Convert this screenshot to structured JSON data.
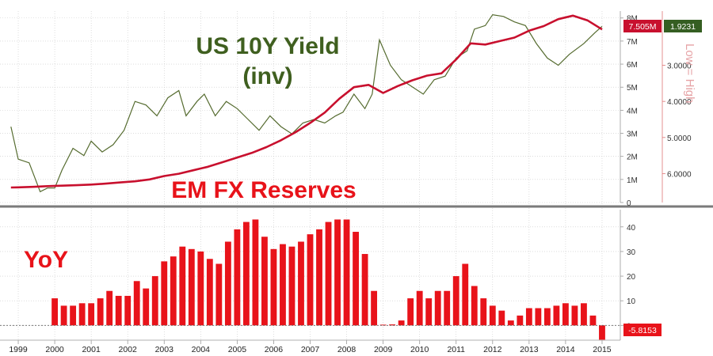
{
  "chart_data": [
    {
      "type": "line",
      "series": [
        {
          "name": "EM FX Reserves",
          "color": "#c8102e",
          "x": [
            1998.8,
            1999.0,
            1999.4,
            1999.8,
            2000.2,
            2000.6,
            2001.0,
            2001.4,
            2001.8,
            2002.2,
            2002.6,
            2003.0,
            2003.4,
            2003.8,
            2004.2,
            2004.6,
            2005.0,
            2005.4,
            2005.8,
            2006.2,
            2006.6,
            2007.0,
            2007.4,
            2007.8,
            2008.2,
            2008.6,
            2009.0,
            2009.4,
            2009.8,
            2010.2,
            2010.6,
            2011.0,
            2011.4,
            2011.8,
            2012.2,
            2012.6,
            2013.0,
            2013.4,
            2013.8,
            2014.2,
            2014.6,
            2015.0
          ],
          "values": [
            0.65,
            0.66,
            0.68,
            0.71,
            0.73,
            0.75,
            0.78,
            0.82,
            0.87,
            0.92,
            1.0,
            1.15,
            1.25,
            1.4,
            1.55,
            1.75,
            1.95,
            2.15,
            2.4,
            2.7,
            3.05,
            3.45,
            3.9,
            4.5,
            5.0,
            5.1,
            4.75,
            5.05,
            5.3,
            5.5,
            5.6,
            6.2,
            6.9,
            6.85,
            7.0,
            7.15,
            7.45,
            7.65,
            7.95,
            8.1,
            7.9,
            7.505
          ]
        },
        {
          "name": "US 10Y Yield (inv)",
          "color": "#556b2f",
          "x": [
            1998.8,
            1999.0,
            1999.3,
            1999.6,
            1999.8,
            2000.0,
            2000.2,
            2000.5,
            2000.8,
            2001.0,
            2001.3,
            2001.6,
            2001.9,
            2002.2,
            2002.5,
            2002.8,
            2003.1,
            2003.4,
            2003.6,
            2003.9,
            2004.1,
            2004.4,
            2004.7,
            2005.0,
            2005.3,
            2005.6,
            2005.9,
            2006.2,
            2006.5,
            2006.8,
            2007.1,
            2007.4,
            2007.7,
            2007.9,
            2008.2,
            2008.5,
            2008.7,
            2008.9,
            2009.2,
            2009.5,
            2009.8,
            2010.1,
            2010.4,
            2010.7,
            2011.0,
            2011.3,
            2011.5,
            2011.8,
            2012.0,
            2012.3,
            2012.6,
            2012.9,
            2013.2,
            2013.5,
            2013.8,
            2014.1,
            2014.5,
            2014.8,
            2015.0
          ],
          "values": [
            4.7,
            5.6,
            5.7,
            6.5,
            6.4,
            6.4,
            5.9,
            5.3,
            5.5,
            5.1,
            5.4,
            5.2,
            4.8,
            4.0,
            4.1,
            4.4,
            3.9,
            3.7,
            4.4,
            4.0,
            3.8,
            4.4,
            4.0,
            4.2,
            4.5,
            4.8,
            4.4,
            4.7,
            4.9,
            4.6,
            4.5,
            4.6,
            4.4,
            4.3,
            3.8,
            4.2,
            3.8,
            2.3,
            3.0,
            3.4,
            3.6,
            3.8,
            3.4,
            3.3,
            2.8,
            2.6,
            2.0,
            1.9,
            1.6,
            1.65,
            1.8,
            1.9,
            2.4,
            2.8,
            3.0,
            2.7,
            2.4,
            2.1,
            1.9231
          ]
        }
      ],
      "left_axis_note": "",
      "right_axis_levels": [
        "8M",
        "7M",
        "6M",
        "5M",
        "4M",
        "3M",
        "2M",
        "1M",
        "0"
      ],
      "right_axis_millions": [
        8,
        7,
        6,
        5,
        4,
        3,
        2,
        1,
        0
      ],
      "inv_axis_levels": [
        "3.0000",
        "4.0000",
        "5.0000",
        "6.0000"
      ],
      "inv_axis_values": [
        3.0,
        4.0,
        5.0,
        6.0
      ],
      "ylim_millions": [
        0,
        8.3
      ],
      "ylim_yield_inverted": [
        6.8,
        1.5
      ],
      "last_labels": {
        "reserves": "7.505M",
        "yield": "1.9231"
      },
      "vertical_label": "Low = High",
      "annotations": {
        "yield_line1": "US 10Y Yield",
        "yield_line2": "(inv)",
        "reserves": "EM FX Reserves"
      }
    },
    {
      "type": "bar",
      "title": "YoY",
      "color": "#e8131a",
      "x": [
        2000.0,
        2000.25,
        2000.5,
        2000.75,
        2001.0,
        2001.25,
        2001.5,
        2001.75,
        2002.0,
        2002.25,
        2002.5,
        2002.75,
        2003.0,
        2003.25,
        2003.5,
        2003.75,
        2004.0,
        2004.25,
        2004.5,
        2004.75,
        2005.0,
        2005.25,
        2005.5,
        2005.75,
        2006.0,
        2006.25,
        2006.5,
        2006.75,
        2007.0,
        2007.25,
        2007.5,
        2007.75,
        2008.0,
        2008.25,
        2008.5,
        2008.75,
        2009.0,
        2009.25,
        2009.5,
        2009.75,
        2010.0,
        2010.25,
        2010.5,
        2010.75,
        2011.0,
        2011.25,
        2011.5,
        2011.75,
        2012.0,
        2012.25,
        2012.5,
        2012.75,
        2013.0,
        2013.25,
        2013.5,
        2013.75,
        2014.0,
        2014.25,
        2014.5,
        2014.75,
        2015.0
      ],
      "values": [
        11,
        8,
        8,
        9,
        9,
        11,
        14,
        12,
        12,
        18,
        15,
        20,
        26,
        28,
        32,
        31,
        30,
        27,
        25,
        34,
        39,
        42,
        43,
        36,
        31,
        33,
        32,
        34,
        37,
        39,
        42,
        43,
        43,
        38,
        29,
        14,
        0.3,
        0.4,
        2,
        11,
        14,
        11,
        14,
        14,
        20,
        25,
        16,
        11,
        8,
        6,
        2,
        4,
        7,
        7,
        7,
        8,
        9,
        8,
        9,
        4,
        -5.8153
      ],
      "ylim": [
        -6,
        47
      ],
      "y_ticks": [
        "40",
        "30",
        "20",
        "10",
        "0"
      ],
      "y_tick_values": [
        40,
        30,
        20,
        10,
        0
      ],
      "last_label": "-5.8153",
      "x_tick_labels": [
        "1999",
        "2000",
        "2001",
        "2002",
        "2003",
        "2004",
        "2005",
        "2006",
        "2007",
        "2008",
        "2009",
        "2010",
        "2011",
        "2012",
        "2013",
        "2014",
        "2015"
      ],
      "x_tick_years": [
        1999,
        2000,
        2001,
        2002,
        2003,
        2004,
        2005,
        2006,
        2007,
        2008,
        2009,
        2010,
        2011,
        2012,
        2013,
        2014,
        2015
      ]
    }
  ],
  "colors": {
    "reserves_line": "#c8102e",
    "yield_line": "#556b2f",
    "bars": "#e8131a",
    "divider": "#7a7a7a",
    "tag_yield_bg": "#355e22",
    "tag_reserves_bg": "#c8102e",
    "tag_yoy_bg": "#e8131a",
    "grid": "#c8c8c8"
  }
}
